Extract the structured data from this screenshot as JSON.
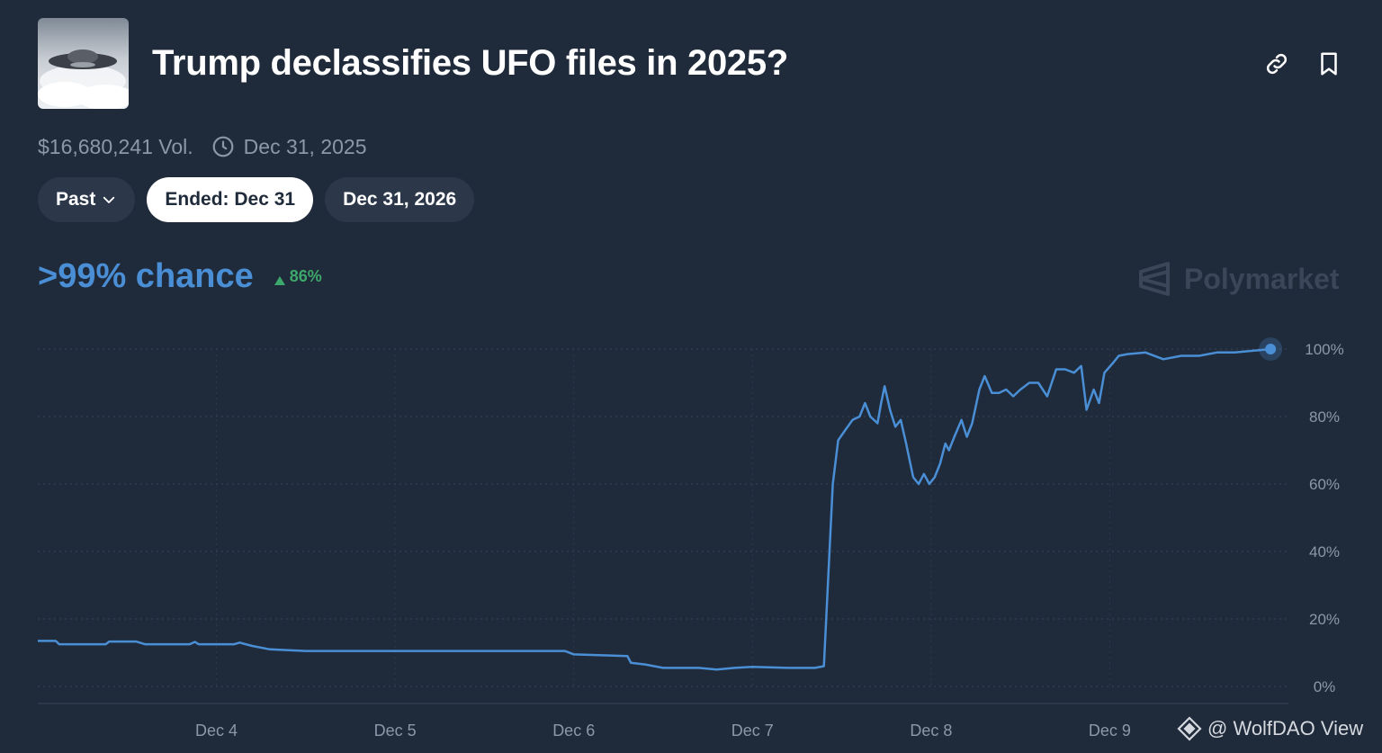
{
  "market": {
    "title": "Trump declassifies UFO files in 2025?",
    "volume": "$16,680,241 Vol.",
    "end_date": "Dec 31, 2025"
  },
  "header_icons": [
    "link-icon",
    "bookmark-icon"
  ],
  "pills": [
    {
      "label": "Past",
      "icon": "chevron-down-icon"
    },
    {
      "label": "Ended: Dec 31",
      "active": true
    },
    {
      "label": "Dec 31, 2026"
    }
  ],
  "chance": {
    "text": ">99% chance",
    "delta": "86%",
    "delta_direction": "up"
  },
  "brand": {
    "name": "Polymarket"
  },
  "watermark": {
    "text": "@ WolfDAO View"
  },
  "colors": {
    "accent": "#4a8fd6",
    "positive": "#3da86b",
    "background": "#1f2a3a"
  },
  "chart_data": {
    "type": "line",
    "y_ticks": [
      "100%",
      "80%",
      "60%",
      "40%",
      "20%",
      "0%"
    ],
    "ylim": [
      0,
      100
    ],
    "x_ticks": [
      "Dec 4",
      "Dec 5",
      "Dec 6",
      "Dec 7",
      "Dec 8",
      "Dec 9"
    ],
    "x_tick_days": [
      4,
      5,
      6,
      7,
      8,
      9
    ],
    "xlim": [
      3,
      10
    ],
    "grid": true,
    "series": [
      {
        "color": "#4a8fd6",
        "points": [
          [
            3.0,
            13.5
          ],
          [
            3.1,
            13.5
          ],
          [
            3.12,
            12.5
          ],
          [
            3.2,
            12.5
          ],
          [
            3.38,
            12.5
          ],
          [
            3.4,
            13.3
          ],
          [
            3.55,
            13.3
          ],
          [
            3.6,
            12.5
          ],
          [
            3.85,
            12.5
          ],
          [
            3.88,
            13.2
          ],
          [
            3.9,
            12.5
          ],
          [
            4.1,
            12.5
          ],
          [
            4.13,
            13.0
          ],
          [
            4.2,
            12.0
          ],
          [
            4.3,
            11.0
          ],
          [
            4.5,
            10.5
          ],
          [
            5.0,
            10.5
          ],
          [
            5.5,
            10.5
          ],
          [
            5.95,
            10.5
          ],
          [
            6.0,
            9.5
          ],
          [
            6.3,
            9.0
          ],
          [
            6.32,
            7.0
          ],
          [
            6.4,
            6.5
          ],
          [
            6.5,
            5.5
          ],
          [
            6.7,
            5.5
          ],
          [
            6.8,
            5.0
          ],
          [
            6.9,
            5.5
          ],
          [
            7.0,
            5.8
          ],
          [
            7.2,
            5.5
          ],
          [
            7.35,
            5.5
          ],
          [
            7.4,
            6.0
          ],
          [
            7.45,
            60.0
          ],
          [
            7.48,
            73.0
          ],
          [
            7.52,
            76.0
          ],
          [
            7.56,
            79.0
          ],
          [
            7.6,
            80.0
          ],
          [
            7.63,
            84.0
          ],
          [
            7.66,
            80.0
          ],
          [
            7.7,
            78.0
          ],
          [
            7.72,
            84.0
          ],
          [
            7.74,
            89.0
          ],
          [
            7.77,
            82.0
          ],
          [
            7.8,
            77.0
          ],
          [
            7.83,
            79.0
          ],
          [
            7.86,
            72.0
          ],
          [
            7.88,
            67.0
          ],
          [
            7.9,
            62.0
          ],
          [
            7.93,
            60.0
          ],
          [
            7.96,
            63.0
          ],
          [
            7.99,
            60.0
          ],
          [
            8.02,
            62.0
          ],
          [
            8.05,
            66.0
          ],
          [
            8.08,
            72.0
          ],
          [
            8.1,
            70.0
          ],
          [
            8.13,
            74.0
          ],
          [
            8.17,
            79.0
          ],
          [
            8.2,
            74.0
          ],
          [
            8.23,
            78.0
          ],
          [
            8.27,
            88.0
          ],
          [
            8.3,
            92.0
          ],
          [
            8.34,
            87.0
          ],
          [
            8.38,
            87.0
          ],
          [
            8.42,
            88.0
          ],
          [
            8.46,
            86.0
          ],
          [
            8.5,
            88.0
          ],
          [
            8.55,
            90.0
          ],
          [
            8.6,
            90.0
          ],
          [
            8.65,
            86.0
          ],
          [
            8.7,
            94.0
          ],
          [
            8.75,
            94.0
          ],
          [
            8.8,
            93.0
          ],
          [
            8.84,
            95.0
          ],
          [
            8.87,
            82.0
          ],
          [
            8.91,
            88.0
          ],
          [
            8.94,
            84.0
          ],
          [
            8.97,
            93.0
          ],
          [
            9.02,
            96.0
          ],
          [
            9.05,
            98.0
          ],
          [
            9.1,
            98.5
          ],
          [
            9.2,
            99.0
          ],
          [
            9.3,
            97.0
          ],
          [
            9.4,
            98.0
          ],
          [
            9.5,
            98.0
          ],
          [
            9.6,
            99.0
          ],
          [
            9.7,
            99.0
          ],
          [
            9.8,
            99.5
          ],
          [
            9.9,
            100.0
          ]
        ]
      }
    ]
  }
}
